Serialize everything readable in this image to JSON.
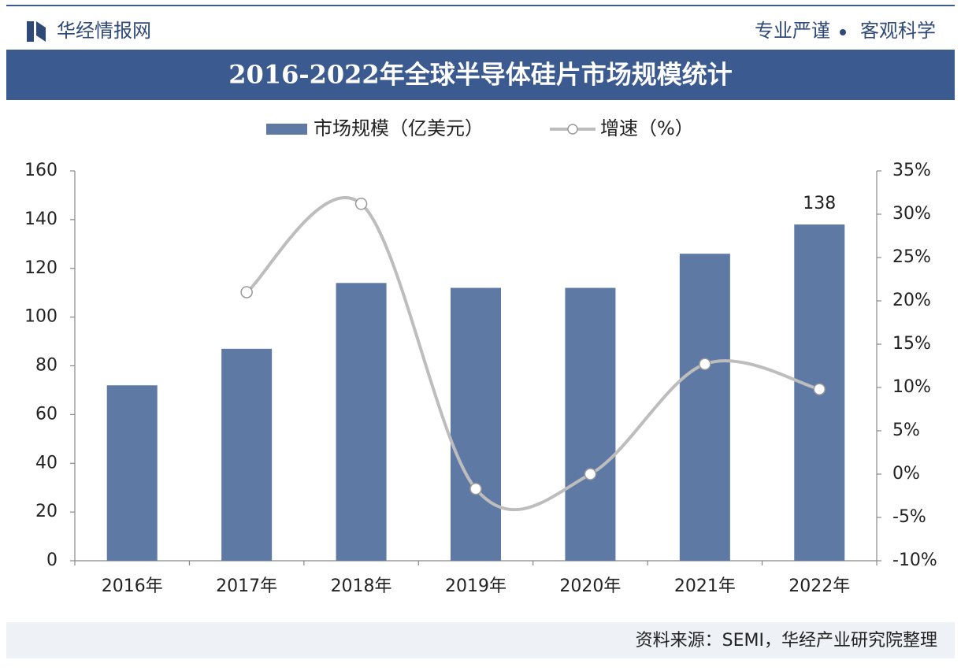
{
  "header": {
    "brand": "华经情报网",
    "motto_left": "专业严谨",
    "motto_right": "客观科学"
  },
  "chart_data": {
    "type": "bar_line",
    "title": "2016-2022年全球半导体硅片市场规模统计",
    "categories": [
      "2016年",
      "2017年",
      "2018年",
      "2019年",
      "2020年",
      "2021年",
      "2022年"
    ],
    "series": [
      {
        "name": "市场规模（亿美元）",
        "color": "#5f79a5",
        "values": [
          72,
          87,
          114,
          112,
          112,
          126,
          138
        ],
        "value_labels": [
          null,
          null,
          null,
          null,
          null,
          null,
          "138"
        ]
      },
      {
        "name": "增速（%）",
        "color": "#bdbdbd",
        "axis": "y2",
        "values": [
          null,
          21,
          31.2,
          -1.7,
          0,
          12.7,
          9.8
        ]
      }
    ],
    "ylim": [
      0,
      160
    ],
    "yticks": [
      0,
      20,
      40,
      60,
      80,
      100,
      120,
      140,
      160
    ],
    "y2lim": [
      -10,
      35
    ],
    "y2ticks": [
      {
        "value": -10,
        "label": "-10%"
      },
      {
        "value": -5,
        "label": "-5%"
      },
      {
        "value": 0,
        "label": "0%"
      },
      {
        "value": 5,
        "label": "5%"
      },
      {
        "value": 10,
        "label": "10%"
      },
      {
        "value": 15,
        "label": "15%"
      },
      {
        "value": 20,
        "label": "20%"
      },
      {
        "value": 25,
        "label": "25%"
      },
      {
        "value": 30,
        "label": "30%"
      },
      {
        "value": 35,
        "label": "35%"
      }
    ],
    "grid": false
  },
  "footer": {
    "source": "资料来源：SEMI，华经产业研究院整理"
  }
}
